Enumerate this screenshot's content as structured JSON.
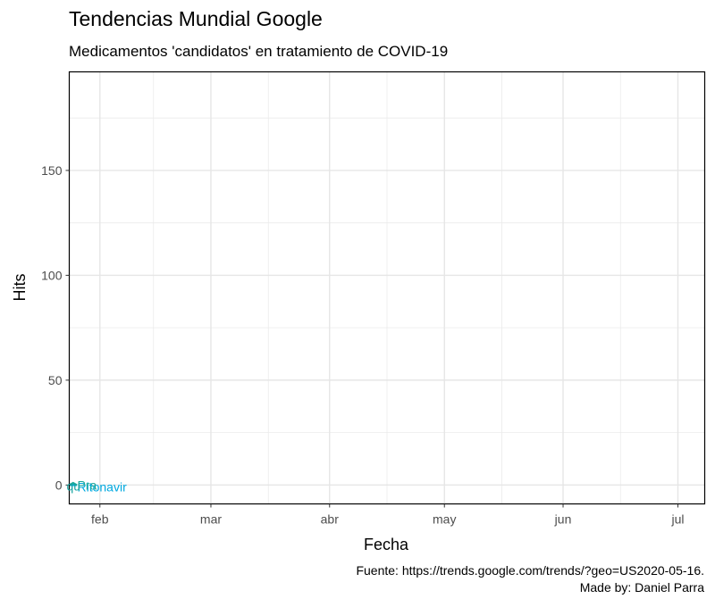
{
  "chart_data": {
    "type": "line",
    "title": "Tendencias Mundial Google",
    "subtitle": "Medicamentos 'candidatos' en tratamiento de COVID-19",
    "xlabel": "Fecha",
    "ylabel": "Hits",
    "x_ticks": [
      "feb",
      "mar",
      "abr",
      "may",
      "jun",
      "jul"
    ],
    "x_tick_dates": [
      "2020-02-01",
      "2020-03-01",
      "2020-04-01",
      "2020-05-01",
      "2020-06-01",
      "2020-07-01"
    ],
    "xlim": [
      "2020-01-24",
      "2020-07-08"
    ],
    "ylim": [
      -9,
      197
    ],
    "y_ticks": [
      0,
      50,
      100,
      150
    ],
    "grid": true,
    "series": [
      {
        "name": "Ritonavir",
        "color": "#00a9e0",
        "points": [
          {
            "x": "2020-01-24",
            "y": 0
          },
          {
            "x": "2020-01-25",
            "y": 0
          },
          {
            "x": "2020-01-26",
            "y": 0
          }
        ]
      },
      {
        "name": "",
        "color": "#1aa89a",
        "points": [
          {
            "x": "2020-01-24",
            "y": 0
          },
          {
            "x": "2020-01-25",
            "y": 1
          },
          {
            "x": "2020-01-26",
            "y": 0
          }
        ]
      }
    ],
    "overlapping_labels": [
      "Ritonavir",
      "Pra",
      "qu"
    ],
    "caption": [
      "Fuente: https://trends.google.com/trends/?geo=US2020-05-16.",
      "Made by: Daniel Parra"
    ]
  }
}
